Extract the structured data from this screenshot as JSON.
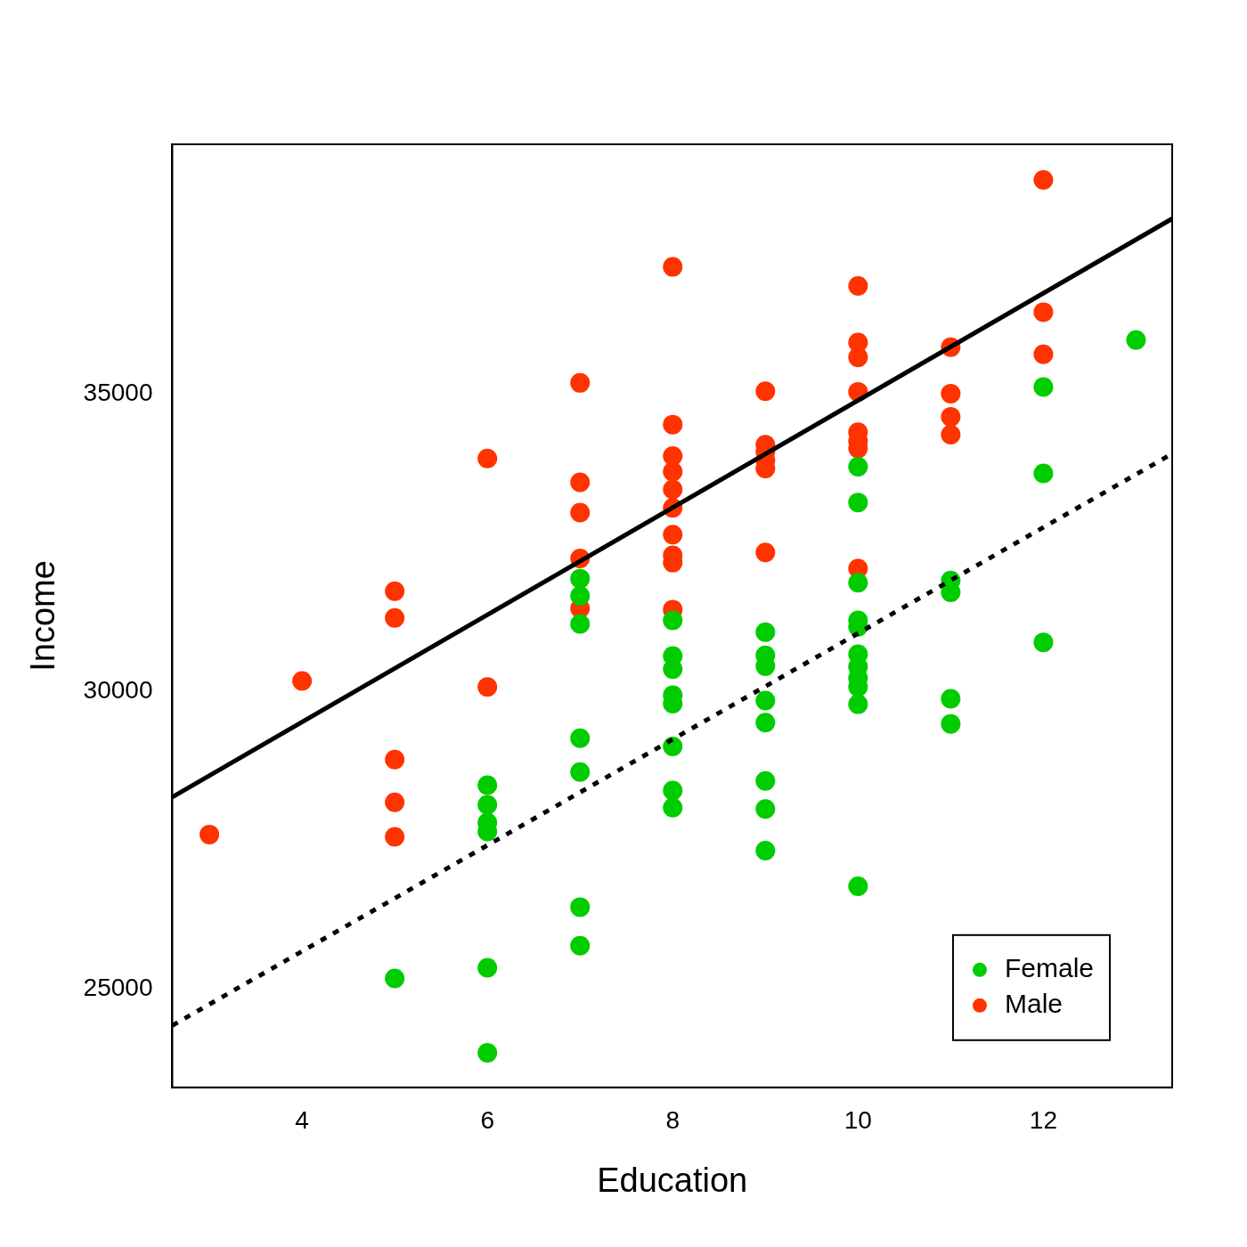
{
  "chart_data": {
    "type": "scatter",
    "x_label": "Education",
    "y_label": "Income",
    "xlim": [
      2.6,
      13.39
    ],
    "ylim": [
      23350,
      39200
    ],
    "xticks": [
      4,
      6,
      8,
      10,
      12
    ],
    "yticks": [
      25000,
      30000,
      35000
    ],
    "grid": false,
    "legend": "bottom right",
    "series": [
      {
        "name": "Female",
        "color": "#00cc00",
        "marker": "circle",
        "x": [
          5,
          6,
          6,
          6,
          6,
          6,
          6,
          7,
          7,
          7,
          7,
          7,
          7,
          7,
          8,
          8,
          8,
          8,
          8,
          8,
          8,
          8,
          9,
          9,
          9,
          9,
          9,
          9,
          9,
          9,
          10,
          10,
          10,
          10,
          10,
          10,
          10,
          10,
          10,
          10,
          10,
          11,
          11,
          11,
          11,
          12,
          12,
          12,
          13
        ],
        "values": [
          25180,
          28430,
          28100,
          27800,
          27650,
          25360,
          23930,
          31900,
          31610,
          31140,
          29220,
          28650,
          26380,
          25730,
          31200,
          30600,
          30380,
          29940,
          29800,
          29080,
          28340,
          28050,
          31000,
          30610,
          30430,
          29850,
          29480,
          28500,
          28030,
          27330,
          33780,
          33180,
          31830,
          31200,
          31090,
          30630,
          30420,
          30230,
          30080,
          29790,
          26730,
          31870,
          31670,
          29880,
          29460,
          35120,
          33670,
          30830,
          35910
        ]
      },
      {
        "name": "Male",
        "color": "#ff3300",
        "marker": "circle",
        "x": [
          3,
          4,
          5,
          5,
          5,
          5,
          5,
          6,
          6,
          7,
          7,
          7,
          7,
          7,
          8,
          8,
          8,
          8,
          8,
          8,
          8,
          8,
          8,
          8,
          9,
          9,
          9,
          9,
          9,
          9,
          10,
          10,
          10,
          10,
          10,
          10,
          10,
          10,
          11,
          11,
          11,
          11,
          12,
          12,
          12
        ],
        "values": [
          27600,
          30180,
          31690,
          31240,
          28860,
          28140,
          27560,
          33920,
          30080,
          35190,
          33520,
          33010,
          32240,
          31400,
          37140,
          34490,
          33960,
          33700,
          33400,
          33090,
          32640,
          32290,
          32170,
          31380,
          35050,
          34150,
          34030,
          33890,
          33750,
          32340,
          36820,
          35870,
          35620,
          35040,
          34360,
          34210,
          34090,
          32070,
          35790,
          35010,
          34620,
          34320,
          38600,
          36380,
          35670
        ]
      }
    ],
    "lines": [
      {
        "color": "#000000",
        "line_style": "solid",
        "x": [
          2.6,
          13.39
        ],
        "values": [
          28230,
          37950
        ]
      },
      {
        "color": "#000000",
        "line_style": "dotted",
        "x": [
          2.6,
          13.39
        ],
        "values": [
          24390,
          34000
        ]
      }
    ]
  }
}
